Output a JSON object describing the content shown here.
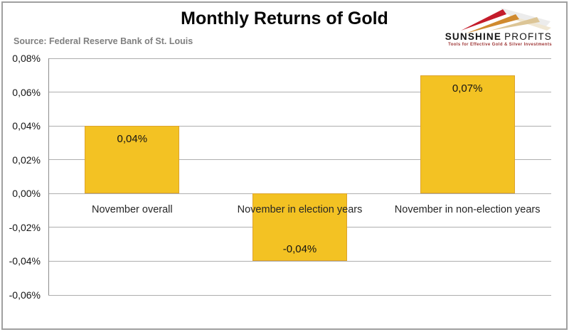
{
  "title": "Monthly Returns of Gold",
  "source": "Source: Federal Reserve Bank of St. Louis",
  "logo": {
    "brand_bold": "SUNSHINE",
    "brand_light": "PROFITS",
    "tagline": "Tools for Effective Gold & Silver Investments",
    "ray_red": "#c41c2b",
    "ray_gold": "#d08a2e",
    "ray_tan": "#dcc596"
  },
  "chart_data": {
    "type": "bar",
    "title": "Monthly Returns of Gold",
    "source": "Federal Reserve Bank of St. Louis",
    "categories": [
      "November overall",
      "November in election years",
      "November in non-election years"
    ],
    "values": [
      0.04,
      -0.04,
      0.07
    ],
    "bar_labels": [
      "0,04%",
      "-0,04%",
      "0,07%"
    ],
    "unit": "percent",
    "ylim": [
      -0.06,
      0.08
    ],
    "yticks": [
      {
        "value": 0.08,
        "label": "0,08%"
      },
      {
        "value": 0.06,
        "label": "0,06%"
      },
      {
        "value": 0.04,
        "label": "0,04%"
      },
      {
        "value": 0.02,
        "label": "0,02%"
      },
      {
        "value": 0.0,
        "label": "0,00%"
      },
      {
        "value": -0.02,
        "label": "-0,02%"
      },
      {
        "value": -0.04,
        "label": "-0,04%"
      },
      {
        "value": -0.06,
        "label": "-0,06%"
      }
    ],
    "grid": "horizontal",
    "legend_position": "none",
    "bar_color": "#f3c223",
    "bar_border_color": "#dda32b"
  }
}
